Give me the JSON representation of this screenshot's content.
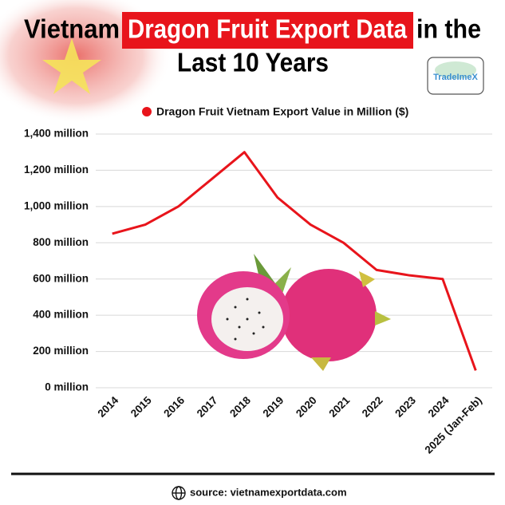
{
  "chart_data": {
    "type": "line",
    "title": "Vietnam",
    "title_highlight": "Dragon Fruit Export Data",
    "title_end": "in the",
    "title_line2": "Last 10 Years",
    "categories": [
      "2014",
      "2015",
      "2016",
      "2017",
      "2018",
      "2019",
      "2020",
      "2021",
      "2022",
      "2023",
      "2024",
      "2025 (Jan-Feb)"
    ],
    "series": [
      {
        "name": "Dragon Fruit Vietnam Export Value in Million ($)",
        "color": "#e8141b",
        "values": [
          850,
          900,
          1000,
          1150,
          1300,
          1050,
          900,
          800,
          650,
          620,
          600,
          95
        ]
      }
    ],
    "ylim": [
      0,
      1400
    ],
    "yticks": [
      {
        "value": 0,
        "label": "0 million"
      },
      {
        "value": 200,
        "label": "200 million"
      },
      {
        "value": 400,
        "label": "400 million"
      },
      {
        "value": 600,
        "label": "600 million"
      },
      {
        "value": 800,
        "label": "800 million"
      },
      {
        "value": 1000,
        "label": "1,000 million"
      },
      {
        "value": 1200,
        "label": "1,200 million"
      },
      {
        "value": 1400,
        "label": "1,400 million"
      }
    ],
    "grid": true,
    "legend": "top"
  },
  "logo": "TradeImeX",
  "source": "source: vietnamexportdata.com"
}
